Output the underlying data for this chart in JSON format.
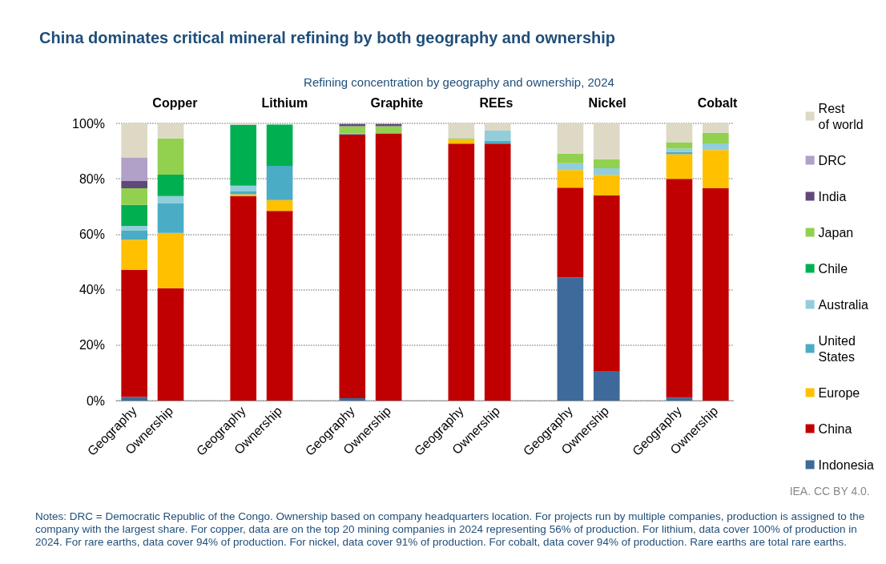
{
  "chart_data": {
    "type": "bar",
    "title": "China dominates critical mineral refining by both geography and ownership",
    "subtitle": "Refining concentration by geography and ownership, 2024",
    "categories": [
      "Geography",
      "Ownership",
      null,
      "Geography",
      "Ownership",
      null,
      "Geography",
      "Ownership",
      null,
      "Geography",
      "Ownership",
      null,
      "Geography",
      "Ownership",
      null,
      "Geography",
      "Ownership"
    ],
    "stacked": true,
    "series": [
      {
        "name": "Indonesia",
        "color": "#3e6a9b",
        "values": [
          1.3,
          null,
          null,
          null,
          null,
          null,
          0.9,
          null,
          null,
          null,
          null,
          null,
          44.4,
          10.5,
          null,
          1.1,
          null
        ]
      },
      {
        "name": "China",
        "color": "#c00000",
        "values": [
          45.8,
          40.5,
          null,
          73.7,
          68.4,
          null,
          95.1,
          96.4,
          null,
          92.7,
          92.7,
          null,
          32.4,
          63.5,
          null,
          78.9,
          76.6
        ]
      },
      {
        "name": "Europe",
        "color": "#ffc000",
        "values": [
          10.9,
          20.0,
          null,
          0.7,
          3.9,
          null,
          null,
          null,
          null,
          1.4,
          null,
          null,
          6.4,
          7.4,
          null,
          8.9,
          13.8
        ]
      },
      {
        "name": "United States",
        "color": "#4bacc6",
        "values": [
          3.3,
          10.6,
          null,
          1.0,
          12.4,
          null,
          0.4,
          null,
          null,
          null,
          1.1,
          null,
          null,
          null,
          null,
          0.8,
          null
        ]
      },
      {
        "name": "Australia",
        "color": "#92cddc",
        "values": [
          1.7,
          2.7,
          null,
          2.1,
          null,
          null,
          null,
          null,
          null,
          null,
          3.6,
          null,
          2.4,
          2.4,
          null,
          1.2,
          2.4
        ]
      },
      {
        "name": "Chile",
        "color": "#00b050",
        "values": [
          7.6,
          7.7,
          null,
          22.0,
          14.9,
          null,
          null,
          null,
          null,
          null,
          null,
          null,
          null,
          null,
          null,
          null,
          null
        ]
      },
      {
        "name": "Japan",
        "color": "#92d050",
        "values": [
          6.0,
          13.1,
          null,
          null,
          null,
          null,
          2.6,
          2.6,
          null,
          0.4,
          null,
          null,
          3.5,
          3.3,
          null,
          2.3,
          3.8
        ]
      },
      {
        "name": "India",
        "color": "#60497a",
        "values": [
          2.6,
          null,
          null,
          null,
          null,
          null,
          0.8,
          0.8,
          null,
          null,
          null,
          null,
          null,
          null,
          null,
          null,
          null
        ]
      },
      {
        "name": "DRC",
        "color": "#b1a0c7",
        "values": [
          8.5,
          null,
          null,
          null,
          null,
          null,
          null,
          null,
          null,
          null,
          null,
          null,
          null,
          null,
          null,
          null,
          null
        ]
      },
      {
        "name": "Rest of world",
        "color": "#ddd9c4",
        "values": [
          12.3,
          5.4,
          null,
          0.5,
          null,
          null,
          null,
          null,
          null,
          5.5,
          2.6,
          null,
          10.9,
          12.9,
          null,
          6.8,
          3.4
        ]
      }
    ],
    "ylim": [
      0,
      100
    ],
    "yticks": [
      {
        "value": 0,
        "label": "0%"
      },
      {
        "value": 20,
        "label": "20%"
      },
      {
        "value": 40,
        "label": "40%"
      },
      {
        "value": 60,
        "label": "60%"
      },
      {
        "value": 80,
        "label": "80%"
      },
      {
        "value": 100,
        "label": "100%"
      }
    ],
    "grid": "y",
    "legend": "right",
    "annotations": [
      "Copper",
      "Lithium",
      "Graphite",
      "REEs",
      "Nickel",
      "Cobalt",
      "IEA. CC BY 4.0.",
      "Notes: DRC = Democratic Republic of the Congo. Ownership based on company headquarters location. For projects run by multiple companies, production is assigned to the company with the largest share. For copper, data are on the top 20 mining companies in 2024 representing 56% of production. For lithium, data cover 100% of production in 2024. For rare earths, data cover 94% of production. For nickel, data cover 91% of production. For cobalt, data cover 94% of production. Rare earths are total rare earths."
    ]
  }
}
